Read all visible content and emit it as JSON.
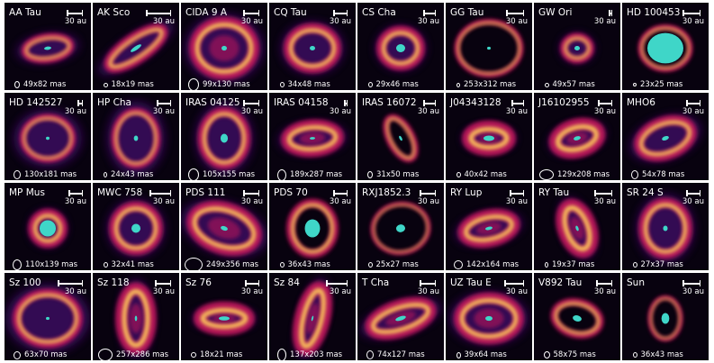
{
  "scale_unit": "30 au",
  "colors": {
    "background": "#ffffff",
    "panel": "#08020f",
    "ring_inner": "#ffd35a",
    "ring_outer": "#c2185b",
    "halo": "#3a0a5e",
    "star": "#3fd6c8",
    "text": "#ffffff"
  },
  "colormap": "inferno",
  "panels": [
    {
      "name": "AA Tau",
      "beam": "49x82 mas"
    },
    {
      "name": "AK Sco",
      "beam": "18x19 mas"
    },
    {
      "name": "CIDA 9 A",
      "beam": "99x130 mas"
    },
    {
      "name": "CQ Tau",
      "beam": "34x48 mas"
    },
    {
      "name": "CS Cha",
      "beam": "29x46 mas"
    },
    {
      "name": "GG Tau",
      "beam": "253x312 mas"
    },
    {
      "name": "GW Ori",
      "beam": "49x57 mas"
    },
    {
      "name": "HD 100453",
      "beam": "23x25 mas"
    },
    {
      "name": "HD 142527",
      "beam": "130x181 mas"
    },
    {
      "name": "HP Cha",
      "beam": "24x43 mas"
    },
    {
      "name": "IRAS 04125",
      "beam": "105x155 mas"
    },
    {
      "name": "IRAS 04158",
      "beam": "189x287 mas"
    },
    {
      "name": "IRAS 16072",
      "beam": "31x50 mas"
    },
    {
      "name": "J04343128",
      "beam": "40x42 mas"
    },
    {
      "name": "J16102955",
      "beam": "129x208 mas"
    },
    {
      "name": "MHO6",
      "beam": "54x78 mas"
    },
    {
      "name": "MP Mus",
      "beam": "110x139 mas"
    },
    {
      "name": "MWC 758",
      "beam": "32x41 mas"
    },
    {
      "name": "PDS 111",
      "beam": "249x356 mas"
    },
    {
      "name": "PDS 70",
      "beam": "36x43 mas"
    },
    {
      "name": "RXJ1852.3",
      "beam": "25x27 mas"
    },
    {
      "name": "RY Lup",
      "beam": "142x164 mas"
    },
    {
      "name": "RY Tau",
      "beam": "19x37 mas"
    },
    {
      "name": "SR 24 S",
      "beam": "27x37 mas"
    },
    {
      "name": "Sz 100",
      "beam": "63x70 mas"
    },
    {
      "name": "Sz 118",
      "beam": "257x286 mas"
    },
    {
      "name": "Sz 76",
      "beam": "18x21 mas"
    },
    {
      "name": "Sz 84",
      "beam": "137x203 mas"
    },
    {
      "name": "T Cha",
      "beam": "74x127 mas"
    },
    {
      "name": "UZ Tau E",
      "beam": "39x64 mas"
    },
    {
      "name": "V892 Tau",
      "beam": "58x75 mas"
    },
    {
      "name": "Sun",
      "beam": "36x43 mas"
    }
  ]
}
